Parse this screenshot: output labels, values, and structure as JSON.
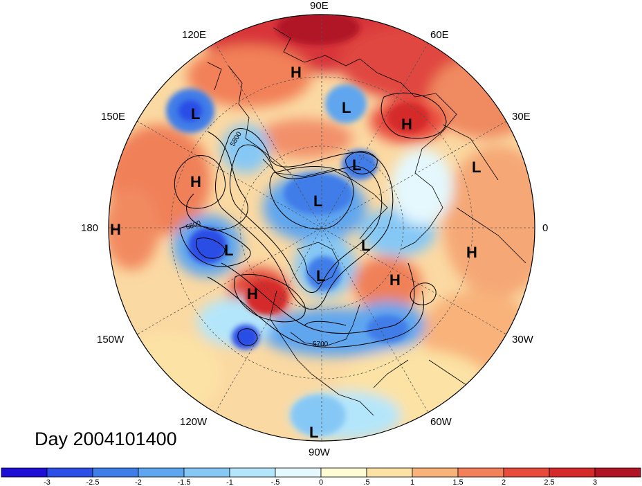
{
  "day_label": "Day 2004101400",
  "longitude_labels": [
    "90E",
    "60E",
    "30E",
    "0",
    "30W",
    "60W",
    "90W",
    "120W",
    "150W",
    "180",
    "150E",
    "120E"
  ],
  "contour_labels": [
    "5800",
    "5800",
    "5700"
  ],
  "pressure_centers": [
    {
      "type": "H",
      "name": "high-siberia"
    },
    {
      "type": "L",
      "name": "low-kara"
    },
    {
      "type": "H",
      "name": "high-urals"
    },
    {
      "type": "L",
      "name": "low-japan"
    },
    {
      "type": "L",
      "name": "low-laptev"
    },
    {
      "type": "L",
      "name": "low-europe"
    },
    {
      "type": "H",
      "name": "high-pacific-west"
    },
    {
      "type": "L",
      "name": "low-arctic"
    },
    {
      "type": "H",
      "name": "high-dateline"
    },
    {
      "type": "L",
      "name": "low-aleutian"
    },
    {
      "type": "L",
      "name": "low-greenland-sea"
    },
    {
      "type": "H",
      "name": "high-africa"
    },
    {
      "type": "L",
      "name": "low-canada"
    },
    {
      "type": "H",
      "name": "high-north-atlantic"
    },
    {
      "type": "H",
      "name": "high-gulf-alaska"
    },
    {
      "type": "L",
      "name": "low-south-pacific"
    }
  ],
  "colorbar": {
    "ticks": [
      "-3",
      "-2.5",
      "-2",
      "-1.5",
      "-1",
      "-.5",
      "0",
      ".5",
      "1",
      "1.5",
      "2",
      "2.5",
      "3"
    ],
    "colors": [
      "#1e0fd6",
      "#2b4ee6",
      "#3f7de8",
      "#5ea6ef",
      "#86c8f5",
      "#b4e6fb",
      "#e4f8fd",
      "#fffbd5",
      "#fce2a4",
      "#f8b27a",
      "#f28058",
      "#e84a3c",
      "#d42a2a",
      "#b01425"
    ]
  }
}
